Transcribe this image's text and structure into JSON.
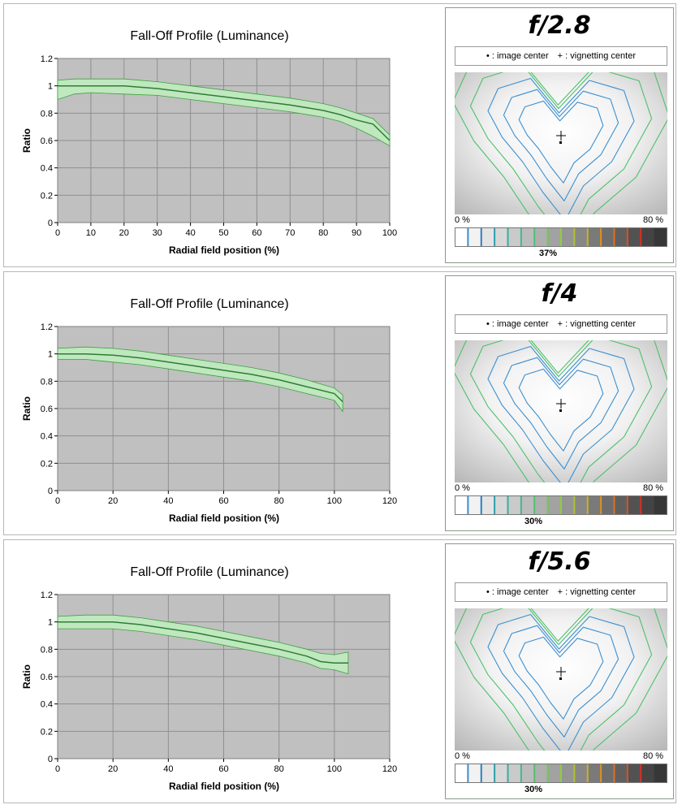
{
  "legend": {
    "image_center": "• : image center",
    "vignetting_center": "+ : vignetting center"
  },
  "scale": {
    "min_label": "0 %",
    "max_label": "80 %"
  },
  "colors": {
    "plot_bg": "#c0c0c0",
    "band_fill": "#bfe8bf",
    "band_edge": "#3f9f3f",
    "line": "#2e7d32",
    "contour_blue": "#3a8fd0",
    "contour_green": "#4cc06a"
  },
  "panels": [
    {
      "aperture": "f/2.8",
      "vignetting_percent": "37%",
      "chart_data": {
        "type": "area",
        "title": "Fall-Off Profile (Luminance)",
        "xlabel": "Radial field position (%)",
        "ylabel": "Ratio",
        "xlim": [
          0,
          100
        ],
        "ylim": [
          0,
          1.2
        ],
        "xticks": [
          0,
          10,
          20,
          30,
          40,
          50,
          60,
          70,
          80,
          90,
          100
        ],
        "yticks": [
          0,
          0.2,
          0.4,
          0.6,
          0.8,
          1,
          1.2
        ],
        "grid": true,
        "series": [
          {
            "x": [
              0,
              5,
              10,
              20,
              30,
              40,
              50,
              60,
              70,
              80,
              85,
              90,
              95,
              100
            ],
            "values": [
              1.0,
              1.0,
              1.0,
              1.0,
              0.98,
              0.95,
              0.92,
              0.89,
              0.86,
              0.82,
              0.79,
              0.75,
              0.72,
              0.6
            ]
          },
          {
            "x": [
              0,
              5,
              10,
              20,
              30,
              40,
              50,
              60,
              70,
              80,
              85,
              90,
              95,
              100
            ],
            "values": [
              1.04,
              1.05,
              1.05,
              1.05,
              1.03,
              1.0,
              0.97,
              0.94,
              0.91,
              0.87,
              0.84,
              0.8,
              0.76,
              0.64
            ]
          },
          {
            "x": [
              0,
              5,
              10,
              20,
              30,
              40,
              50,
              60,
              70,
              80,
              85,
              90,
              95,
              100
            ],
            "values": [
              0.9,
              0.94,
              0.95,
              0.94,
              0.93,
              0.9,
              0.87,
              0.84,
              0.81,
              0.77,
              0.74,
              0.69,
              0.63,
              0.56
            ]
          }
        ]
      }
    },
    {
      "aperture": "f/4",
      "vignetting_percent": "30%",
      "chart_data": {
        "type": "area",
        "title": "Fall-Off Profile (Luminance)",
        "xlabel": "Radial field position (%)",
        "ylabel": "Ratio",
        "xlim": [
          0,
          120
        ],
        "ylim": [
          0,
          1.2
        ],
        "xticks": [
          0,
          20,
          40,
          60,
          80,
          100,
          120
        ],
        "yticks": [
          0,
          0.2,
          0.4,
          0.6,
          0.8,
          1,
          1.2
        ],
        "grid": true,
        "series": [
          {
            "x": [
              0,
              10,
              20,
              30,
              40,
              50,
              60,
              70,
              80,
              90,
              100,
              103
            ],
            "values": [
              1.0,
              1.0,
              0.99,
              0.97,
              0.94,
              0.91,
              0.88,
              0.85,
              0.81,
              0.76,
              0.71,
              0.65
            ]
          },
          {
            "x": [
              0,
              10,
              20,
              30,
              40,
              50,
              60,
              70,
              80,
              90,
              100,
              103
            ],
            "values": [
              1.04,
              1.05,
              1.04,
              1.02,
              0.99,
              0.96,
              0.93,
              0.9,
              0.86,
              0.81,
              0.75,
              0.7
            ]
          },
          {
            "x": [
              0,
              10,
              20,
              30,
              40,
              50,
              60,
              70,
              80,
              90,
              100,
              103
            ],
            "values": [
              0.96,
              0.96,
              0.94,
              0.92,
              0.89,
              0.86,
              0.83,
              0.8,
              0.76,
              0.71,
              0.66,
              0.58
            ]
          }
        ]
      }
    },
    {
      "aperture": "f/5.6",
      "vignetting_percent": "30%",
      "chart_data": {
        "type": "area",
        "title": "Fall-Off Profile (Luminance)",
        "xlabel": "Radial field position (%)",
        "ylabel": "Ratio",
        "xlim": [
          0,
          120
        ],
        "ylim": [
          0,
          1.2
        ],
        "xticks": [
          0,
          20,
          40,
          60,
          80,
          100,
          120
        ],
        "yticks": [
          0,
          0.2,
          0.4,
          0.6,
          0.8,
          1,
          1.2
        ],
        "grid": true,
        "series": [
          {
            "x": [
              0,
              10,
              20,
              30,
              40,
              50,
              60,
              70,
              80,
              90,
              95,
              100,
              105
            ],
            "values": [
              1.0,
              1.0,
              1.0,
              0.98,
              0.95,
              0.92,
              0.88,
              0.84,
              0.8,
              0.75,
              0.71,
              0.7,
              0.7
            ]
          },
          {
            "x": [
              0,
              10,
              20,
              30,
              40,
              50,
              60,
              70,
              80,
              90,
              95,
              100,
              105
            ],
            "values": [
              1.04,
              1.05,
              1.05,
              1.03,
              1.0,
              0.97,
              0.93,
              0.89,
              0.85,
              0.8,
              0.77,
              0.76,
              0.78
            ]
          },
          {
            "x": [
              0,
              10,
              20,
              30,
              40,
              50,
              60,
              70,
              80,
              90,
              95,
              100,
              105
            ],
            "values": [
              0.95,
              0.95,
              0.95,
              0.93,
              0.9,
              0.87,
              0.83,
              0.79,
              0.75,
              0.7,
              0.66,
              0.65,
              0.62
            ]
          }
        ]
      }
    }
  ]
}
